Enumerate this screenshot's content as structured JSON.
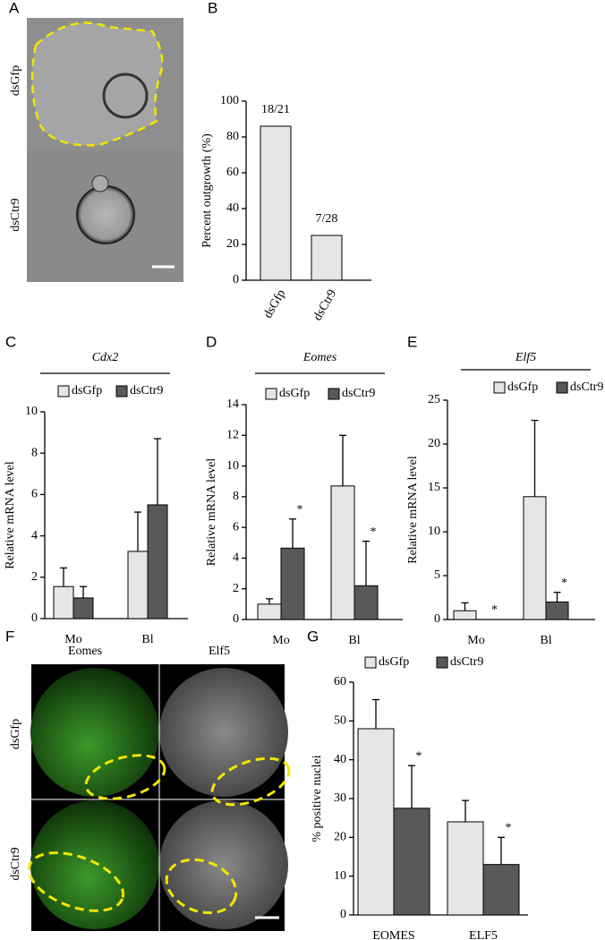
{
  "figure": {
    "panel_letters": [
      "A",
      "B",
      "C",
      "D",
      "E",
      "F",
      "G"
    ],
    "panel_a": {
      "row_labels": [
        "dsGfp",
        "dsCtr9"
      ]
    },
    "panel_f": {
      "column_labels": [
        "Eomes",
        "Elf5"
      ],
      "row_labels": [
        "dsGfp",
        "dsCtr9"
      ]
    }
  },
  "chart_data": [
    {
      "type": "bar",
      "y_label": "Percent  outgrowth (%)",
      "categories": [
        "dsGfp",
        "dsCtr9"
      ],
      "values": [
        86,
        25
      ],
      "value_labels": [
        "18/21",
        "7/28"
      ],
      "color": "#e6e6e6",
      "ylim": [
        0,
        100
      ],
      "yticks": [
        0,
        20,
        40,
        60,
        80,
        100
      ]
    },
    {
      "type": "bar",
      "title": "Cdx2",
      "y_label": "Relative mRNA level",
      "categories": [
        "Mo",
        "Bl"
      ],
      "series": [
        {
          "name": "dsGfp",
          "color": "#e6e6e6",
          "values": [
            1.55,
            3.25
          ],
          "errors": [
            0.9,
            1.9
          ]
        },
        {
          "name": "dsCtr9",
          "color": "#595959",
          "values": [
            1.0,
            5.5
          ],
          "errors": [
            0.55,
            3.2
          ]
        }
      ],
      "ylim": [
        0,
        10
      ],
      "yticks": [
        0,
        2,
        4,
        6,
        8,
        10
      ]
    },
    {
      "type": "bar",
      "title": "Eomes",
      "y_label": "Relative mRNA level",
      "categories": [
        "Mo",
        "Bl"
      ],
      "series": [
        {
          "name": "dsGfp",
          "color": "#e6e6e6",
          "values": [
            1.0,
            8.7
          ],
          "errors": [
            0.35,
            3.3
          ]
        },
        {
          "name": "dsCtr9",
          "color": "#595959",
          "values": [
            4.65,
            2.2
          ],
          "errors": [
            1.9,
            2.9
          ],
          "annotations": [
            "*",
            "*"
          ]
        }
      ],
      "ylim": [
        0,
        14
      ],
      "yticks": [
        0,
        2,
        4,
        6,
        8,
        10,
        12,
        14
      ]
    },
    {
      "type": "bar",
      "title": "Elf5",
      "y_label": "Relative mRNA level",
      "categories": [
        "Mo",
        "Bl"
      ],
      "series": [
        {
          "name": "dsGfp",
          "color": "#e6e6e6",
          "values": [
            1.0,
            14.0
          ],
          "errors": [
            0.9,
            8.7
          ]
        },
        {
          "name": "dsCtr9",
          "color": "#595959",
          "values": [
            0,
            2.0
          ],
          "errors": [
            0,
            1.1
          ],
          "annotations": [
            "*",
            "*"
          ]
        }
      ],
      "ylim": [
        0,
        25
      ],
      "yticks": [
        0,
        5,
        10,
        15,
        20,
        25
      ]
    },
    {
      "type": "bar",
      "y_label": "%  positive nuclei",
      "categories": [
        "EOMES",
        "ELF5"
      ],
      "series": [
        {
          "name": "dsGfp",
          "color": "#e6e6e6",
          "values": [
            48,
            24
          ],
          "errors": [
            7.5,
            5.5
          ]
        },
        {
          "name": "dsCtr9",
          "color": "#595959",
          "values": [
            27.5,
            13
          ],
          "errors": [
            11,
            7
          ],
          "annotations": [
            "*",
            "*"
          ]
        }
      ],
      "ylim": [
        0,
        60
      ],
      "yticks": [
        0,
        10,
        20,
        30,
        40,
        50,
        60
      ]
    }
  ]
}
